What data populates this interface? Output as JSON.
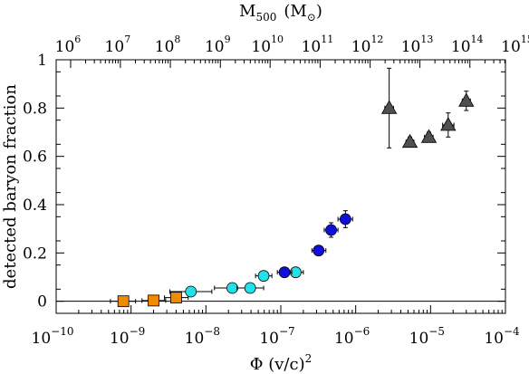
{
  "chart_data": {
    "type": "scatter",
    "xscale": "log",
    "xlim": [
      1e-10,
      0.0001
    ],
    "ylim": [
      -0.05,
      1.0
    ],
    "grid": false,
    "legend": "none",
    "xlabel_base": "Φ (v/c)",
    "xlabel_sup": "2",
    "ylabel": "detected baryon fraction",
    "top_xlabel_base": "M",
    "top_xlabel_sub": "500",
    "top_xlabel_unit": "(M",
    "top_xlabel_unit_sub": "⊙",
    "top_xlabel_close": ")",
    "yticks": [
      0,
      0.2,
      0.4,
      0.6,
      0.8,
      1
    ],
    "ytick_labels": [
      "0",
      "0.2",
      "0.4",
      "0.6",
      "0.8",
      "1"
    ],
    "xticks_major": [
      {
        "v": 1e-10,
        "base": "10",
        "exp": "−10"
      },
      {
        "v": 1e-09,
        "base": "10",
        "exp": "−9"
      },
      {
        "v": 1e-08,
        "base": "10",
        "exp": "−8"
      },
      {
        "v": 1e-07,
        "base": "10",
        "exp": "−7"
      },
      {
        "v": 1e-06,
        "base": "10",
        "exp": "−6"
      },
      {
        "v": 1e-05,
        "base": "10",
        "exp": "−5"
      },
      {
        "v": 0.0001,
        "base": "10",
        "exp": "−4"
      }
    ],
    "top_ticks": [
      {
        "v": 1.56e-10,
        "base": "10",
        "exp": "6"
      },
      {
        "v": 7.2e-10,
        "base": "10",
        "exp": "7"
      },
      {
        "v": 3.35e-09,
        "base": "10",
        "exp": "8"
      },
      {
        "v": 1.56e-08,
        "base": "10",
        "exp": "9"
      },
      {
        "v": 7.2e-08,
        "base": "10",
        "exp": "10"
      },
      {
        "v": 3.35e-07,
        "base": "10",
        "exp": "11"
      },
      {
        "v": 1.56e-06,
        "base": "10",
        "exp": "12"
      },
      {
        "v": 7.2e-06,
        "base": "10",
        "exp": "13"
      },
      {
        "v": 3.35e-05,
        "base": "10",
        "exp": "14"
      },
      {
        "v": 0.000156,
        "base": "10",
        "exp": "15"
      }
    ],
    "series": [
      {
        "marker": "square",
        "color": "#f28a00",
        "points": [
          {
            "x": 7.9e-10,
            "y": 0.0,
            "xlo": 5.3e-10,
            "xhi": 1.15e-09,
            "yerr": 0.008
          },
          {
            "x": 2e-09,
            "y": 0.003,
            "xlo": 1.4e-09,
            "xhi": 2.9e-09,
            "yerr": 0.008
          },
          {
            "x": 4e-09,
            "y": 0.015,
            "xlo": 2.8e-09,
            "xhi": 5.8e-09,
            "yerr": 0.012
          }
        ]
      },
      {
        "marker": "circle",
        "color": "#22e1e8",
        "points": [
          {
            "x": 6.3e-09,
            "y": 0.04,
            "xlo": 3.3e-09,
            "xhi": 1.2e-08,
            "yerr": 0.01
          },
          {
            "x": 2.25e-08,
            "y": 0.055,
            "xlo": 1.3e-08,
            "xhi": 3.9e-08,
            "yerr": 0.015
          },
          {
            "x": 3.9e-08,
            "y": 0.055,
            "xlo": 2.6e-08,
            "xhi": 5.9e-08,
            "yerr": 0.012
          },
          {
            "x": 5.9e-08,
            "y": 0.105,
            "xlo": 4.6e-08,
            "xhi": 7.6e-08,
            "yerr": 0.015
          },
          {
            "x": 1.58e-07,
            "y": 0.12,
            "xlo": 1.26e-07,
            "xhi": 2e-07,
            "yerr": 0.01
          }
        ]
      },
      {
        "marker": "circle",
        "color": "#1010dc",
        "points": [
          {
            "x": 1.12e-07,
            "y": 0.12,
            "xlo": 9e-08,
            "xhi": 1.4e-07,
            "yerr": 0.018
          },
          {
            "x": 3.2e-07,
            "y": 0.21,
            "xlo": 2.6e-07,
            "xhi": 4e-07,
            "yerr": 0.012
          },
          {
            "x": 4.7e-07,
            "y": 0.295,
            "xlo": 3.8e-07,
            "xhi": 5.8e-07,
            "yerr": 0.03
          },
          {
            "x": 7.3e-07,
            "y": 0.34,
            "xlo": 5.8e-07,
            "xhi": 9.1e-07,
            "yerr": 0.035
          }
        ]
      },
      {
        "marker": "triangle",
        "color": "#505050",
        "points": [
          {
            "x": 2.8e-06,
            "y": 0.8,
            "xlo": 2.45e-06,
            "xhi": 3.2e-06,
            "ylo": 0.635,
            "yhi": 0.965
          },
          {
            "x": 5.3e-06,
            "y": 0.66,
            "xlo": 4.7e-06,
            "xhi": 6e-06,
            "ylo": 0.64,
            "yhi": 0.68
          },
          {
            "x": 9.5e-06,
            "y": 0.68,
            "xlo": 8.3e-06,
            "xhi": 1.08e-05,
            "ylo": 0.66,
            "yhi": 0.7
          },
          {
            "x": 1.72e-05,
            "y": 0.73,
            "xlo": 1.45e-05,
            "xhi": 2.05e-05,
            "ylo": 0.68,
            "yhi": 0.78
          },
          {
            "x": 3e-05,
            "y": 0.83,
            "xlo": 2.65e-05,
            "xhi": 3.4e-05,
            "ylo": 0.79,
            "yhi": 0.87
          }
        ]
      }
    ]
  }
}
